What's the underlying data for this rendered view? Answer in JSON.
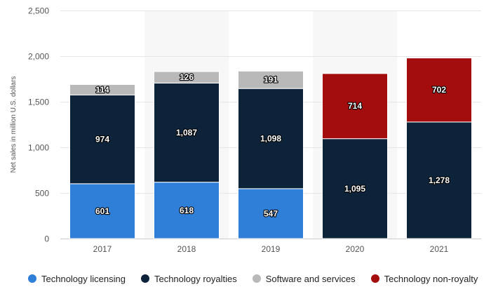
{
  "chart_data": {
    "type": "bar",
    "stacked": true,
    "categories": [
      "2017",
      "2018",
      "2019",
      "2020",
      "2021"
    ],
    "series": [
      {
        "name": "Technology licensing",
        "color": "#2f7ed8",
        "values": [
          601,
          618,
          547,
          null,
          null
        ]
      },
      {
        "name": "Technology royalties",
        "color": "#0d233a",
        "values": [
          974,
          1087,
          1098,
          1095,
          1278
        ]
      },
      {
        "name": "Software and services",
        "color": "#b9b9b9",
        "values": [
          114,
          126,
          191,
          null,
          null
        ]
      },
      {
        "name": "Technology non-royalty",
        "color": "#a30d0d",
        "values": [
          null,
          null,
          null,
          714,
          702
        ]
      }
    ],
    "data_labels": [
      [
        "601",
        "618",
        "547",
        "",
        ""
      ],
      [
        "974",
        "1,087",
        "1,098",
        "1,095",
        "1,278"
      ],
      [
        "114",
        "126",
        "191",
        "",
        ""
      ],
      [
        "",
        "",
        "",
        "714",
        "702"
      ]
    ],
    "ylabel": "Net sales in million U.S. dollars",
    "ylim": [
      0,
      2500
    ],
    "yticks": [
      0,
      500,
      1000,
      1500,
      2000,
      2500
    ],
    "ytick_labels": [
      "0",
      "500",
      "1,000",
      "1,500",
      "2,000",
      "2,500"
    ],
    "grid": true,
    "legend_position": "bottom"
  }
}
